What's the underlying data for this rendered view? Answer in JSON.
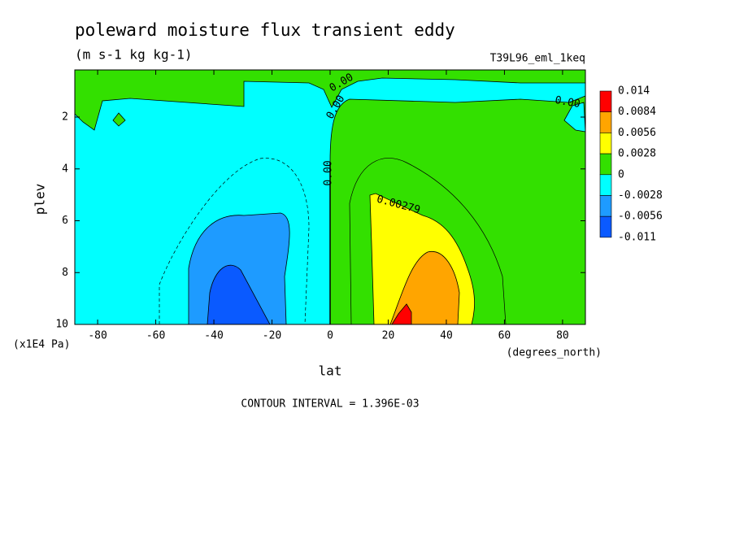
{
  "chart_data": {
    "type": "contour",
    "title": "poleward moisture flux transient eddy",
    "subtitle": "(m s-1 kg kg-1)",
    "dataset": "T39L96_eml_1keq",
    "x_label": "lat",
    "x_units": "(degrees_north)",
    "y_label": "plev",
    "y_units": "(x1E4 Pa)",
    "footer": "CONTOUR INTERVAL = 1.396E-03",
    "xlim": [
      -87.86,
      87.86
    ],
    "xticks": [
      -80,
      -60,
      -40,
      -20,
      0,
      20,
      40,
      60,
      80
    ],
    "ylim": [
      10,
      0.18
    ],
    "yticks": [
      2,
      4,
      6,
      8,
      10
    ],
    "colorbar": {
      "levels": [
        0.014,
        0.0084,
        0.0056,
        0.0028,
        0,
        -0.0028,
        -0.0056,
        -0.011
      ],
      "colors": [
        "#ff0000",
        "#ffa500",
        "#ffff00",
        "#33e000",
        "#00ffff",
        "#1e9bff",
        "#0a5aff"
      ]
    },
    "contour_labels": [
      "0.00",
      "0.00",
      "0.00",
      "0.00279",
      "0.00"
    ]
  }
}
